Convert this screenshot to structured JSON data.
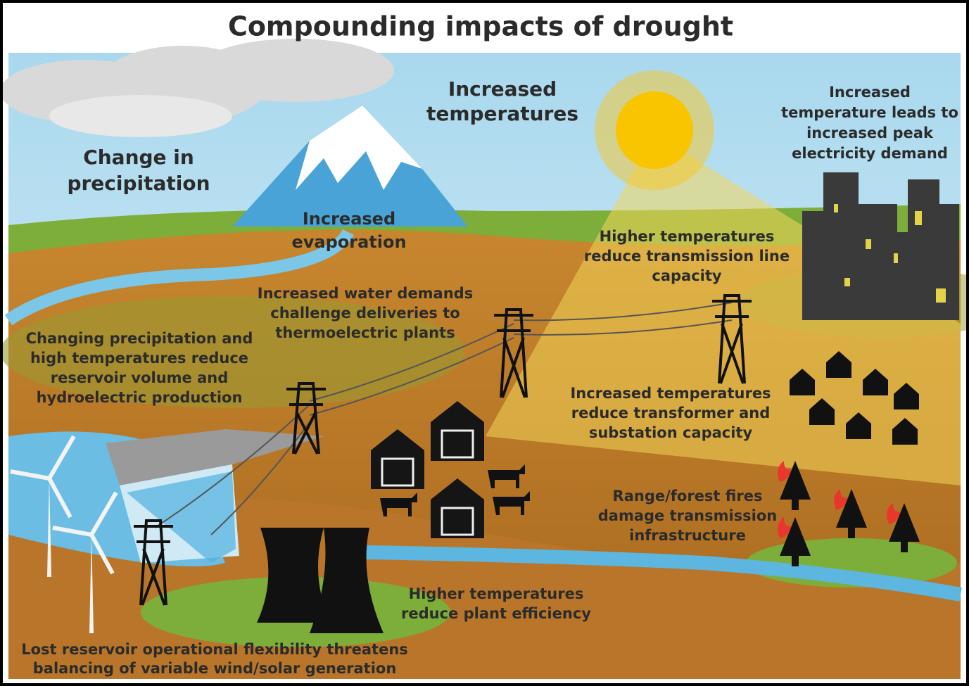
{
  "title": "Compounding impacts of drought",
  "labels": [
    {
      "lines": [
        "Change in",
        "precipitation"
      ]
    },
    {
      "lines": [
        "Increased",
        "temperatures"
      ]
    },
    {
      "lines": [
        "Increased",
        "evaporation"
      ]
    },
    {
      "lines": [
        "Increased",
        "temperature leads to",
        "increased peak",
        "electricity demand"
      ]
    },
    {
      "lines": [
        "Higher temperatures",
        "reduce transmission line",
        "capacity"
      ]
    },
    {
      "lines": [
        "Increased water demands",
        "challenge deliveries to",
        "thermoelectric plants"
      ]
    },
    {
      "lines": [
        "Changing precipitation and",
        "high temperatures reduce",
        "reservoir volume and",
        "hydroelectric production"
      ]
    },
    {
      "lines": [
        "Increased temperatures",
        "reduce transformer and",
        "substation capacity"
      ]
    },
    {
      "lines": [
        "Range/forest fires",
        "damage transmission",
        "infrastructure"
      ]
    },
    {
      "lines": [
        "Higher temperatures",
        "reduce plant efficiency"
      ]
    },
    {
      "lines": [
        "Lost reservoir operational flexibility threatens",
        "balancing of variable wind/solar generation"
      ]
    }
  ]
}
